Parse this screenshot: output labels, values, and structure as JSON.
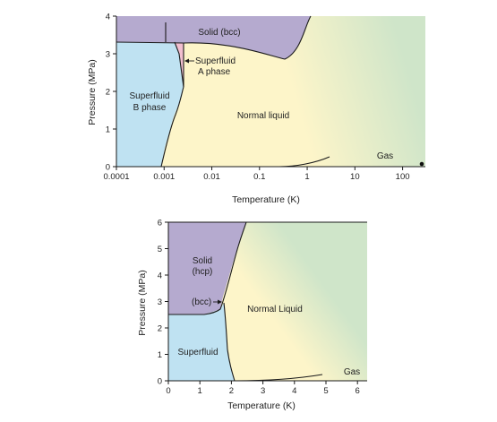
{
  "chart_data": [
    {
      "type": "phase-diagram",
      "xscale": "log",
      "xlabel": "Temperature (K)",
      "ylabel": "Pressure (MPa)",
      "xlim": [
        0.0001,
        300
      ],
      "ylim": [
        0,
        4
      ],
      "x_ticks": [
        0.0001,
        0.001,
        0.01,
        0.1,
        1,
        10,
        100
      ],
      "x_tick_labels": [
        "0.0001",
        "0.001",
        "0.01",
        "0.1",
        "1",
        "10",
        "100"
      ],
      "y_ticks": [
        0,
        1,
        2,
        3,
        4
      ],
      "y_tick_labels": [
        "0",
        "1",
        "2",
        "3",
        "4"
      ],
      "regions": {
        "solid": "Solid (bcc)",
        "superfluid_a": [
          "Superfluid",
          "A phase"
        ],
        "superfluid_b": [
          "Superfluid",
          "B phase"
        ],
        "normal_liquid": "Normal liquid",
        "gas": "Gas"
      },
      "colors": {
        "solid": "#b5aacf",
        "superfluid": "#bfe2f2",
        "superfluid_a": "#f2bfd0",
        "liquid": "#fdf5c9",
        "gas": "#cfe5c9",
        "boundary": "#1a1a1a"
      },
      "boundaries": {
        "melting_curve": [
          [
            0.0001,
            3.44
          ],
          [
            0.001,
            3.44
          ],
          [
            0.003,
            3.36
          ],
          [
            0.03,
            3.32
          ],
          [
            0.15,
            3.18
          ],
          [
            0.32,
            2.93
          ],
          [
            0.6,
            3.25
          ],
          [
            1.1,
            3.85
          ],
          [
            1.35,
            4.0
          ]
        ],
        "ab_transition": [
          [
            0.001,
            0
          ],
          [
            0.0018,
            1.3
          ],
          [
            0.0022,
            2.7
          ],
          [
            0.0023,
            3.0
          ],
          [
            0.0024,
            3.35
          ]
        ],
        "a_transition": [
          [
            0.001,
            0
          ],
          [
            0.00195,
            1.0
          ],
          [
            0.0023,
            2.1
          ],
          [
            0.0026,
            3.36
          ]
        ],
        "vapor_curve": [
          [
            0.3,
            0.0
          ],
          [
            1.0,
            0.02
          ],
          [
            2.0,
            0.1
          ],
          [
            3.3,
            0.24
          ]
        ],
        "critical_point": [
          3.3,
          0.117
        ]
      },
      "annotations": {
        "bcc_hcp_marker_x": 0.0015,
        "point": [
          230,
          0.02
        ]
      }
    },
    {
      "type": "phase-diagram",
      "xscale": "linear",
      "xlabel": "Temperature (K)",
      "ylabel": "Pressure (MPa)",
      "xlim": [
        0,
        7
      ],
      "ylim": [
        0,
        6
      ],
      "x_ticks": [
        0,
        1,
        2,
        3,
        4,
        5,
        6
      ],
      "x_tick_labels": [
        "0",
        "1",
        "2",
        "3",
        "4",
        "5",
        "6"
      ],
      "y_ticks": [
        0,
        1,
        2,
        3,
        4,
        5,
        6
      ],
      "y_tick_labels": [
        "0",
        "1",
        "2",
        "3",
        "4",
        "5",
        "6"
      ],
      "regions": {
        "solid": [
          "Solid",
          "(hcp)"
        ],
        "bcc": "(bcc)",
        "normal_liquid": "Normal Liquid",
        "superfluid": "Superfluid",
        "gas": "Gas"
      },
      "colors": {
        "solid": "#b5aacf",
        "superfluid": "#bfe2f2",
        "liquid": "#fdf5c9",
        "gas": "#cfe5c9",
        "boundary": "#1a1a1a"
      },
      "boundaries": {
        "melting_curve": [
          [
            0,
            2.53
          ],
          [
            1.0,
            2.53
          ],
          [
            1.45,
            2.6
          ],
          [
            1.65,
            2.75
          ],
          [
            1.78,
            3.0
          ],
          [
            2.0,
            3.7
          ],
          [
            2.3,
            4.7
          ],
          [
            2.6,
            5.5
          ],
          [
            2.85,
            6.0
          ]
        ],
        "lambda_line": [
          [
            1.7,
            2.75
          ],
          [
            1.76,
            2.0
          ],
          [
            1.85,
            1.2
          ],
          [
            2.0,
            0.6
          ],
          [
            2.17,
            0.005
          ]
        ],
        "vapor_curve": [
          [
            2.0,
            0.0
          ],
          [
            3.0,
            0.02
          ],
          [
            4.2,
            0.08
          ],
          [
            5.2,
            0.23
          ]
        ]
      }
    }
  ]
}
